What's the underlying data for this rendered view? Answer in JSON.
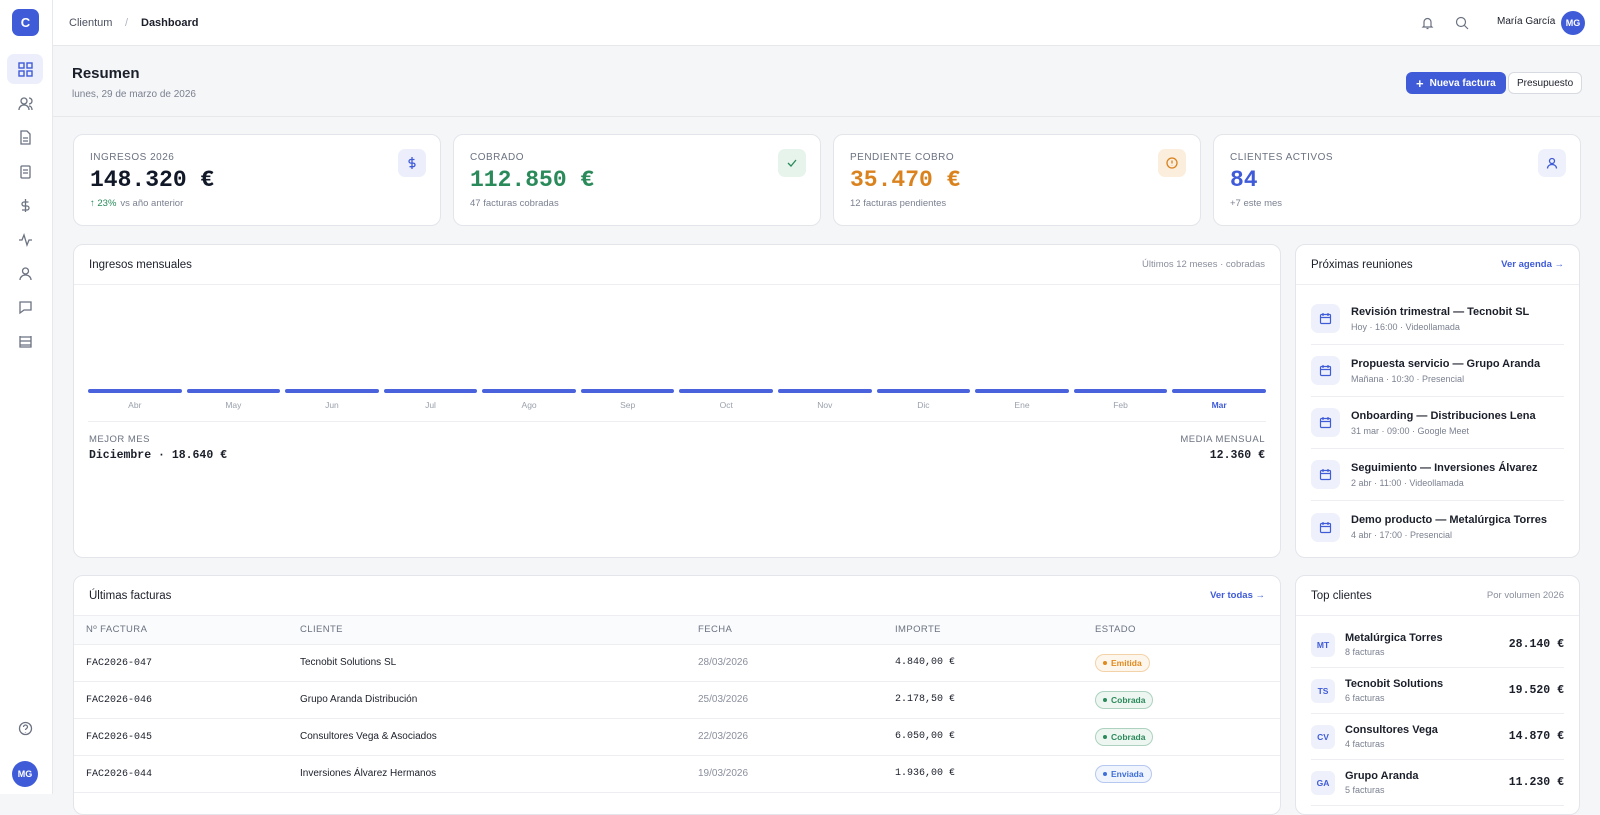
{
  "topbar": {
    "logo": "C",
    "breadcrumb": [
      "Clientum",
      "Dashboard"
    ],
    "user": "María García",
    "initials": "MG"
  },
  "header": {
    "title": "Resumen",
    "date": "lunes, 29 de marzo de 2026",
    "primary_button": "Nueva factura",
    "secondary_button": "Presupuesto"
  },
  "kpis": [
    {
      "label": "INGRESOS 2026",
      "value": "148.320 €",
      "color": "#111827",
      "trend": "↑ 23%",
      "note": "vs año anterior"
    },
    {
      "label": "COBRADO",
      "value": "112.850 €",
      "color": "#2a8a5a",
      "note": "47 facturas cobradas"
    },
    {
      "label": "PENDIENTE COBRO",
      "value": "35.470 €",
      "color": "#d9821e",
      "note": "12 facturas pendientes"
    },
    {
      "label": "CLIENTES ACTIVOS",
      "value": "84",
      "color": "#3f5bd8",
      "note": "+7 este mes"
    }
  ],
  "monthly": {
    "title": "Ingresos mensuales",
    "subtitle": "Últimos 12 meses · cobradas",
    "months": [
      "Abr",
      "May",
      "Jun",
      "Jul",
      "Ago",
      "Sep",
      "Oct",
      "Nov",
      "Dic",
      "Ene",
      "Feb",
      "Mar"
    ],
    "best_label": "MEJOR MES",
    "best_value": "Diciembre · 18.640 €",
    "avg_label": "MEDIA MENSUAL",
    "avg_value": "12.360 €"
  },
  "meetings": {
    "title": "Próximas reuniones",
    "link": "Ver agenda →",
    "items": [
      {
        "title": "Revisión trimestral — Tecnobit SL",
        "meta": "Hoy · 16:00 · Videollamada"
      },
      {
        "title": "Propuesta servicio — Grupo Aranda",
        "meta": "Mañana · 10:30 · Presencial"
      },
      {
        "title": "Onboarding — Distribuciones Lena",
        "meta": "31 mar · 09:00 · Google Meet"
      },
      {
        "title": "Seguimiento — Inversiones Álvarez",
        "meta": "2 abr · 11:00 · Videollamada"
      },
      {
        "title": "Demo producto — Metalúrgica Torres",
        "meta": "4 abr · 17:00 · Presencial"
      }
    ]
  },
  "invoices": {
    "title": "Últimas facturas",
    "link": "Ver todas →",
    "columns": [
      "Nº FACTURA",
      "CLIENTE",
      "FECHA",
      "IMPORTE",
      "ESTADO"
    ],
    "rows": [
      {
        "id": "FAC2026-047",
        "client": "Tecnobit Solutions SL",
        "date": "28/03/2026",
        "amount": "4.840,00 €",
        "status": "Emitida",
        "status_color": "#e08a1e"
      },
      {
        "id": "FAC2026-046",
        "client": "Grupo Aranda Distribución",
        "date": "25/03/2026",
        "amount": "2.178,50 €",
        "status": "Cobrada",
        "status_color": "#2a8a5a"
      },
      {
        "id": "FAC2026-045",
        "client": "Consultores Vega & Asociados",
        "date": "22/03/2026",
        "amount": "6.050,00 €",
        "status": "Cobrada",
        "status_color": "#2a8a5a"
      },
      {
        "id": "FAC2026-044",
        "client": "Inversiones Álvarez Hermanos",
        "date": "19/03/2026",
        "amount": "1.936,00 €",
        "status": "Enviada",
        "status_color": "#3f6fd8"
      }
    ]
  },
  "top_clients": {
    "title": "Top clientes",
    "subtitle": "Por volumen 2026",
    "items": [
      {
        "initials": "MT",
        "name": "Metalúrgica Torres",
        "count": "8 facturas",
        "amount": "28.140 €"
      },
      {
        "initials": "TS",
        "name": "Tecnobit Solutions",
        "count": "6 facturas",
        "amount": "19.520 €"
      },
      {
        "initials": "CV",
        "name": "Consultores Vega",
        "count": "4 facturas",
        "amount": "14.870 €"
      },
      {
        "initials": "GA",
        "name": "Grupo Aranda",
        "count": "5 facturas",
        "amount": "11.230 €"
      }
    ]
  }
}
